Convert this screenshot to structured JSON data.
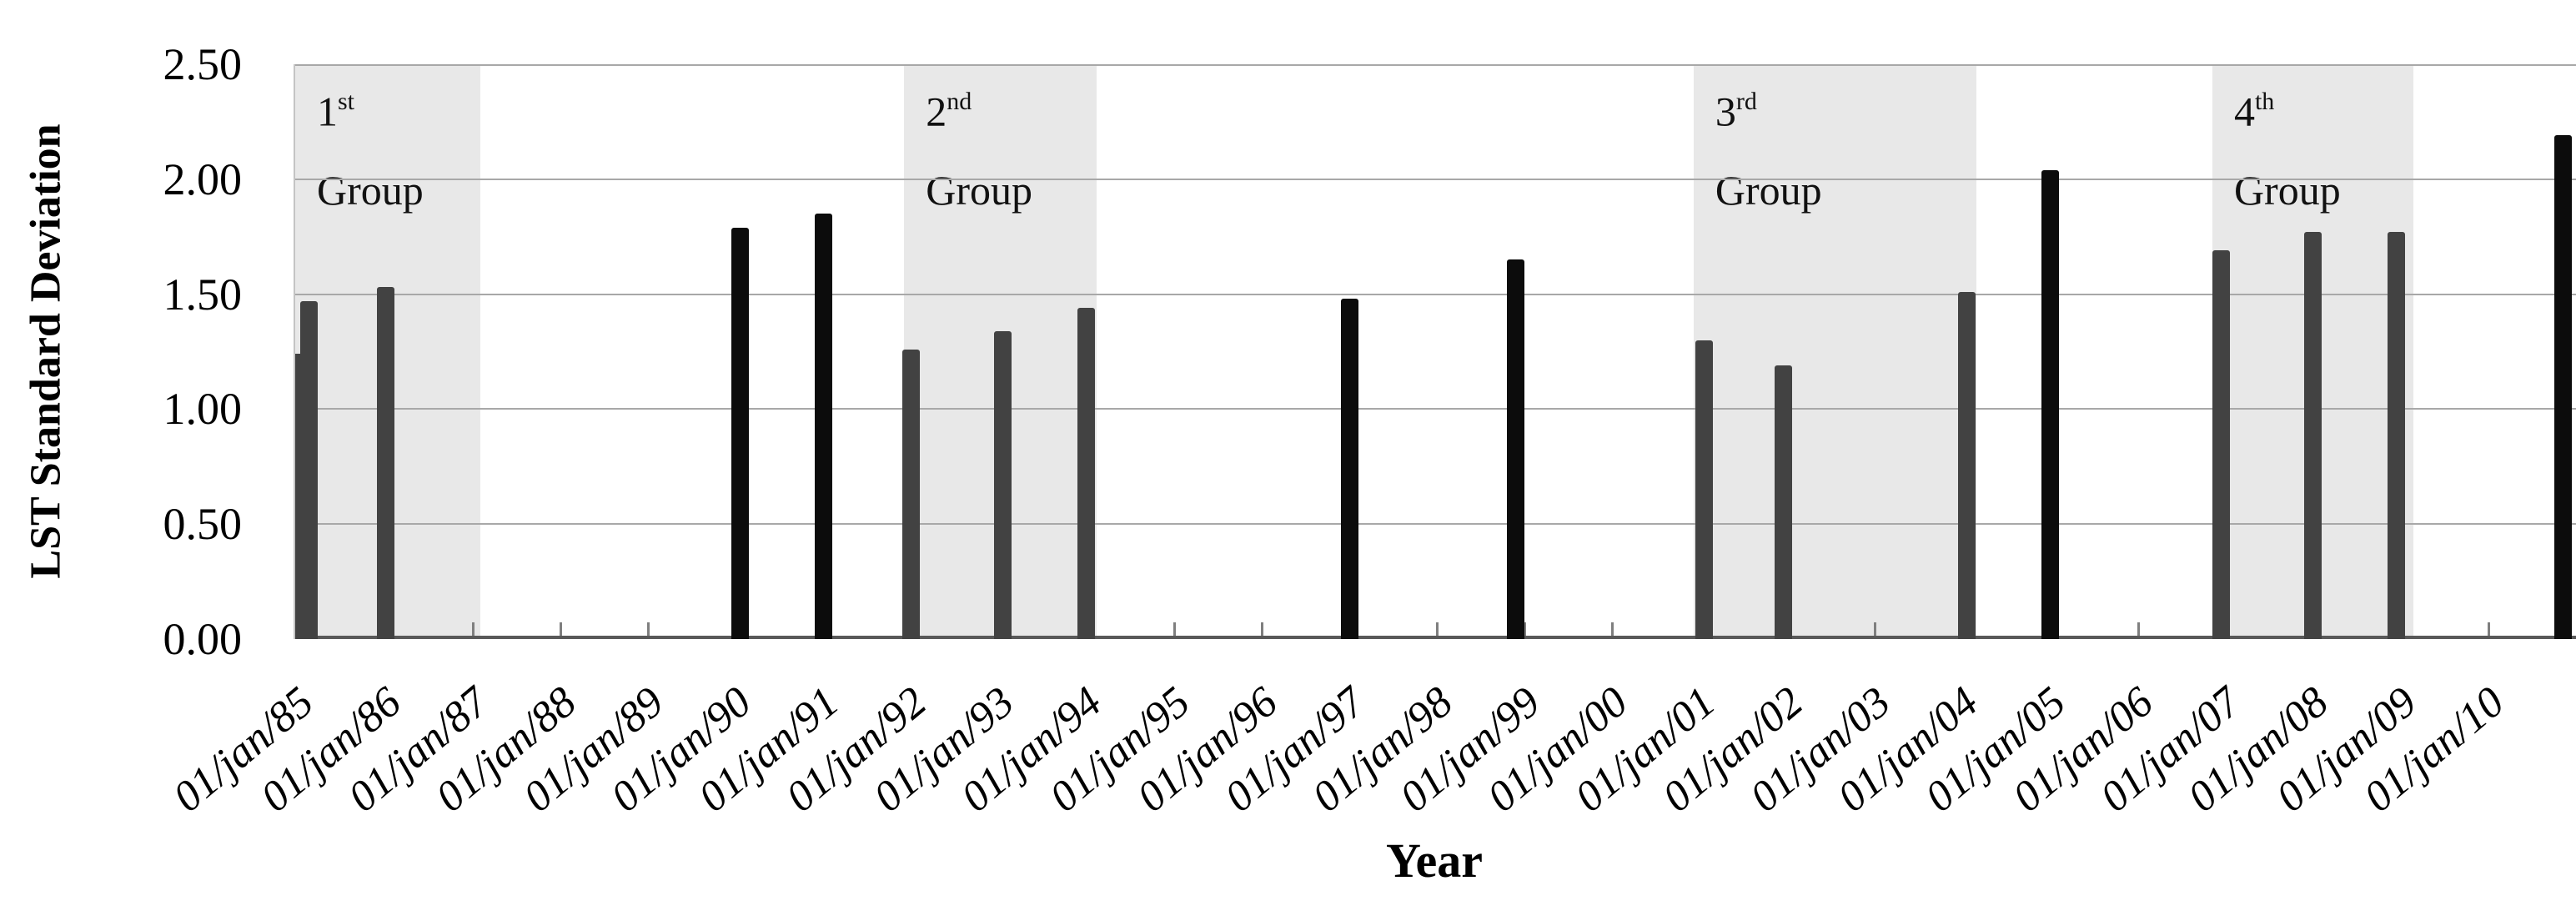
{
  "y_axis": {
    "title": "LST Standard Deviation",
    "tick_labels": [
      "2.50",
      "2.00",
      "1.50",
      "1.00",
      "0.50",
      "0.00"
    ]
  },
  "x_axis": {
    "title": "Year",
    "tick_labels": [
      "01/jan/85",
      "01/jan/86",
      "01/jan/87",
      "01/jan/88",
      "01/jan/89",
      "01/jan/90",
      "01/jan/91",
      "01/jan/92",
      "01/jan/93",
      "01/jan/94",
      "01/jan/95",
      "01/jan/96",
      "01/jan/97",
      "01/jan/98",
      "01/jan/99",
      "01/jan/00",
      "01/jan/01",
      "01/jan/02",
      "01/jan/03",
      "01/jan/04",
      "01/jan/05",
      "01/jan/06",
      "01/jan/07",
      "01/jan/08",
      "01/jan/09",
      "01/jan/10"
    ]
  },
  "groups": [
    {
      "ordinal": "1",
      "suffix": "st",
      "word": "Group",
      "x_start": 1984.97,
      "x_end": 1987.08
    },
    {
      "ordinal": "2",
      "suffix": "nd",
      "word": "Group",
      "x_start": 1991.92,
      "x_end": 1994.12
    },
    {
      "ordinal": "3",
      "suffix": "rd",
      "word": "Group",
      "x_start": 2000.93,
      "x_end": 2004.16
    },
    {
      "ordinal": "4",
      "suffix": "th",
      "word": "Group",
      "x_start": 2006.85,
      "x_end": 2009.14
    }
  ],
  "chart_data": {
    "type": "bar",
    "title": "",
    "xlabel": "Year",
    "ylabel": "LST Standard Deviation",
    "x_range": [
      1984.97,
      2011.0
    ],
    "ylim": [
      0,
      2.5
    ],
    "gridline_values": [
      0.5,
      1.0,
      1.5,
      2.0,
      2.5
    ],
    "tick_years": [
      1985,
      1986,
      1987,
      1988,
      1989,
      1990,
      1991,
      1992,
      1993,
      1994,
      1995,
      1996,
      1997,
      1998,
      1999,
      2000,
      2001,
      2002,
      2003,
      2004,
      2005,
      2006,
      2007,
      2008,
      2009,
      2010
    ],
    "points": [
      {
        "x": 1985.0,
        "y": 1.24,
        "shade": "dark_gray"
      },
      {
        "x": 1985.13,
        "y": 1.47,
        "shade": "dark_gray"
      },
      {
        "x": 1986.0,
        "y": 1.53,
        "shade": "dark_gray"
      },
      {
        "x": 1990.05,
        "y": 1.79,
        "shade": "black"
      },
      {
        "x": 1991.0,
        "y": 1.85,
        "shade": "black"
      },
      {
        "x": 1992.0,
        "y": 1.26,
        "shade": "dark_gray"
      },
      {
        "x": 1993.05,
        "y": 1.34,
        "shade": "dark_gray"
      },
      {
        "x": 1994.0,
        "y": 1.44,
        "shade": "dark_gray"
      },
      {
        "x": 1997.0,
        "y": 1.48,
        "shade": "black"
      },
      {
        "x": 1998.9,
        "y": 1.65,
        "shade": "black"
      },
      {
        "x": 2001.05,
        "y": 1.3,
        "shade": "dark_gray"
      },
      {
        "x": 2001.95,
        "y": 1.19,
        "shade": "dark_gray"
      },
      {
        "x": 2004.05,
        "y": 1.51,
        "shade": "dark_gray"
      },
      {
        "x": 2005.0,
        "y": 2.04,
        "shade": "black"
      },
      {
        "x": 2006.95,
        "y": 1.69,
        "shade": "dark_gray"
      },
      {
        "x": 2008.0,
        "y": 1.77,
        "shade": "dark_gray"
      },
      {
        "x": 2008.95,
        "y": 1.77,
        "shade": "dark_gray"
      },
      {
        "x": 2010.85,
        "y": 2.19,
        "shade": "black"
      }
    ],
    "colors": {
      "dark_gray": "#424242",
      "black": "#0c0c0c",
      "band": "#e8e8e8",
      "gridline": "#a8a8a8",
      "axis_line": "#595959",
      "tick": "#7f7f7f"
    }
  }
}
